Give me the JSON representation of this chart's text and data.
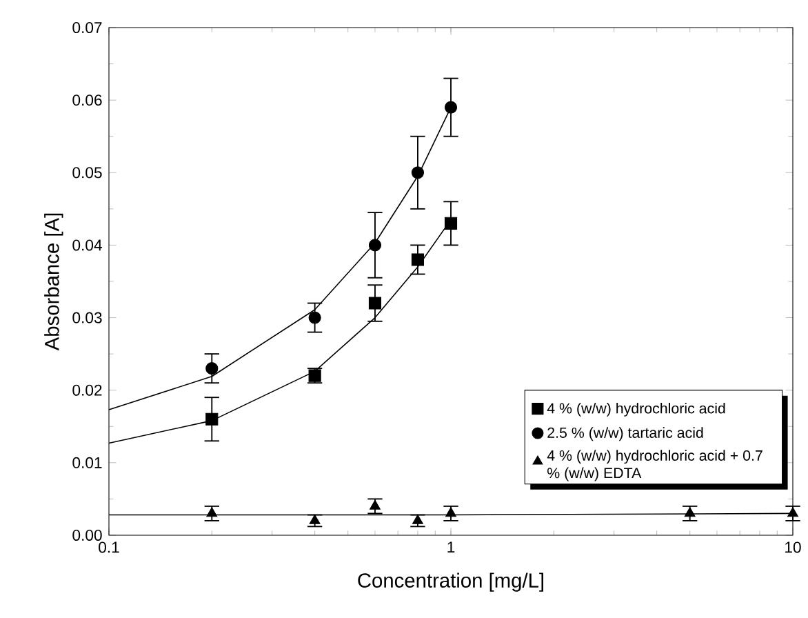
{
  "chart_data": {
    "type": "scatter",
    "xlabel": "Concentration [mg/L]",
    "ylabel": "Absorbance [A]",
    "log": "x",
    "xlim": [
      0.1,
      10
    ],
    "xticks": [
      0.1,
      1,
      10
    ],
    "ylim": [
      0,
      0.07
    ],
    "yticks": [
      {
        "value": 0,
        "label": "0.00"
      },
      {
        "value": 0.01,
        "label": "0.01"
      },
      {
        "value": 0.02,
        "label": "0.02"
      },
      {
        "value": 0.03,
        "label": "0.03"
      },
      {
        "value": 0.04,
        "label": "0.04"
      },
      {
        "value": 0.05,
        "label": "0.05"
      },
      {
        "value": 0.06,
        "label": "0.06"
      },
      {
        "value": 0.07,
        "label": "0.07"
      }
    ],
    "legend": "right",
    "grid": false,
    "series": [
      {
        "name": "4 % (w/w) hydrochloric acid",
        "color": "#000000",
        "marker": "square",
        "x": [
          0.2,
          0.4,
          0.6,
          0.8,
          1.0
        ],
        "values": [
          0.016,
          0.022,
          0.032,
          0.038,
          0.043
        ],
        "errors": [
          0.003,
          0.001,
          0.0025,
          0.002,
          0.003
        ]
      },
      {
        "name": "2.5 % (w/w) tartaric acid",
        "color": "#000000",
        "marker": "circle",
        "x": [
          0.2,
          0.4,
          0.6,
          0.8,
          1.0
        ],
        "values": [
          0.023,
          0.03,
          0.04,
          0.05,
          0.059
        ],
        "errors": [
          0.002,
          0.002,
          0.0045,
          0.005,
          0.004
        ]
      },
      {
        "name": "4 % (w/w) hydrochloric acid + 0.7 % (w/w) EDTA",
        "color": "#000000",
        "marker": "triangle",
        "x": [
          0.2,
          0.4,
          0.6,
          0.8,
          1.0,
          5,
          10
        ],
        "values": [
          0.003,
          0.002,
          0.004,
          0.002,
          0.003,
          0.003,
          0.003
        ],
        "errors": [
          0.001,
          0.0008,
          0.001,
          0.0008,
          0.001,
          0.001,
          0.001
        ]
      },
      {
        "type": "line",
        "color": "#000000",
        "marker": "none",
        "x": [
          0.1,
          0.2,
          0.4,
          0.6,
          0.8,
          1.0
        ],
        "values": [
          0.0127,
          0.0158,
          0.0226,
          0.03,
          0.037,
          0.0435
        ]
      },
      {
        "type": "line",
        "color": "#000000",
        "marker": "none",
        "x": [
          0.1,
          0.2,
          0.4,
          0.6,
          0.8,
          1.0
        ],
        "values": [
          0.0173,
          0.0219,
          0.0311,
          0.0403,
          0.0495,
          0.059
        ]
      },
      {
        "type": "line",
        "color": "#000000",
        "marker": "none",
        "x": [
          0.1,
          1,
          10
        ],
        "values": [
          0.0028,
          0.0028,
          0.003
        ]
      }
    ]
  }
}
